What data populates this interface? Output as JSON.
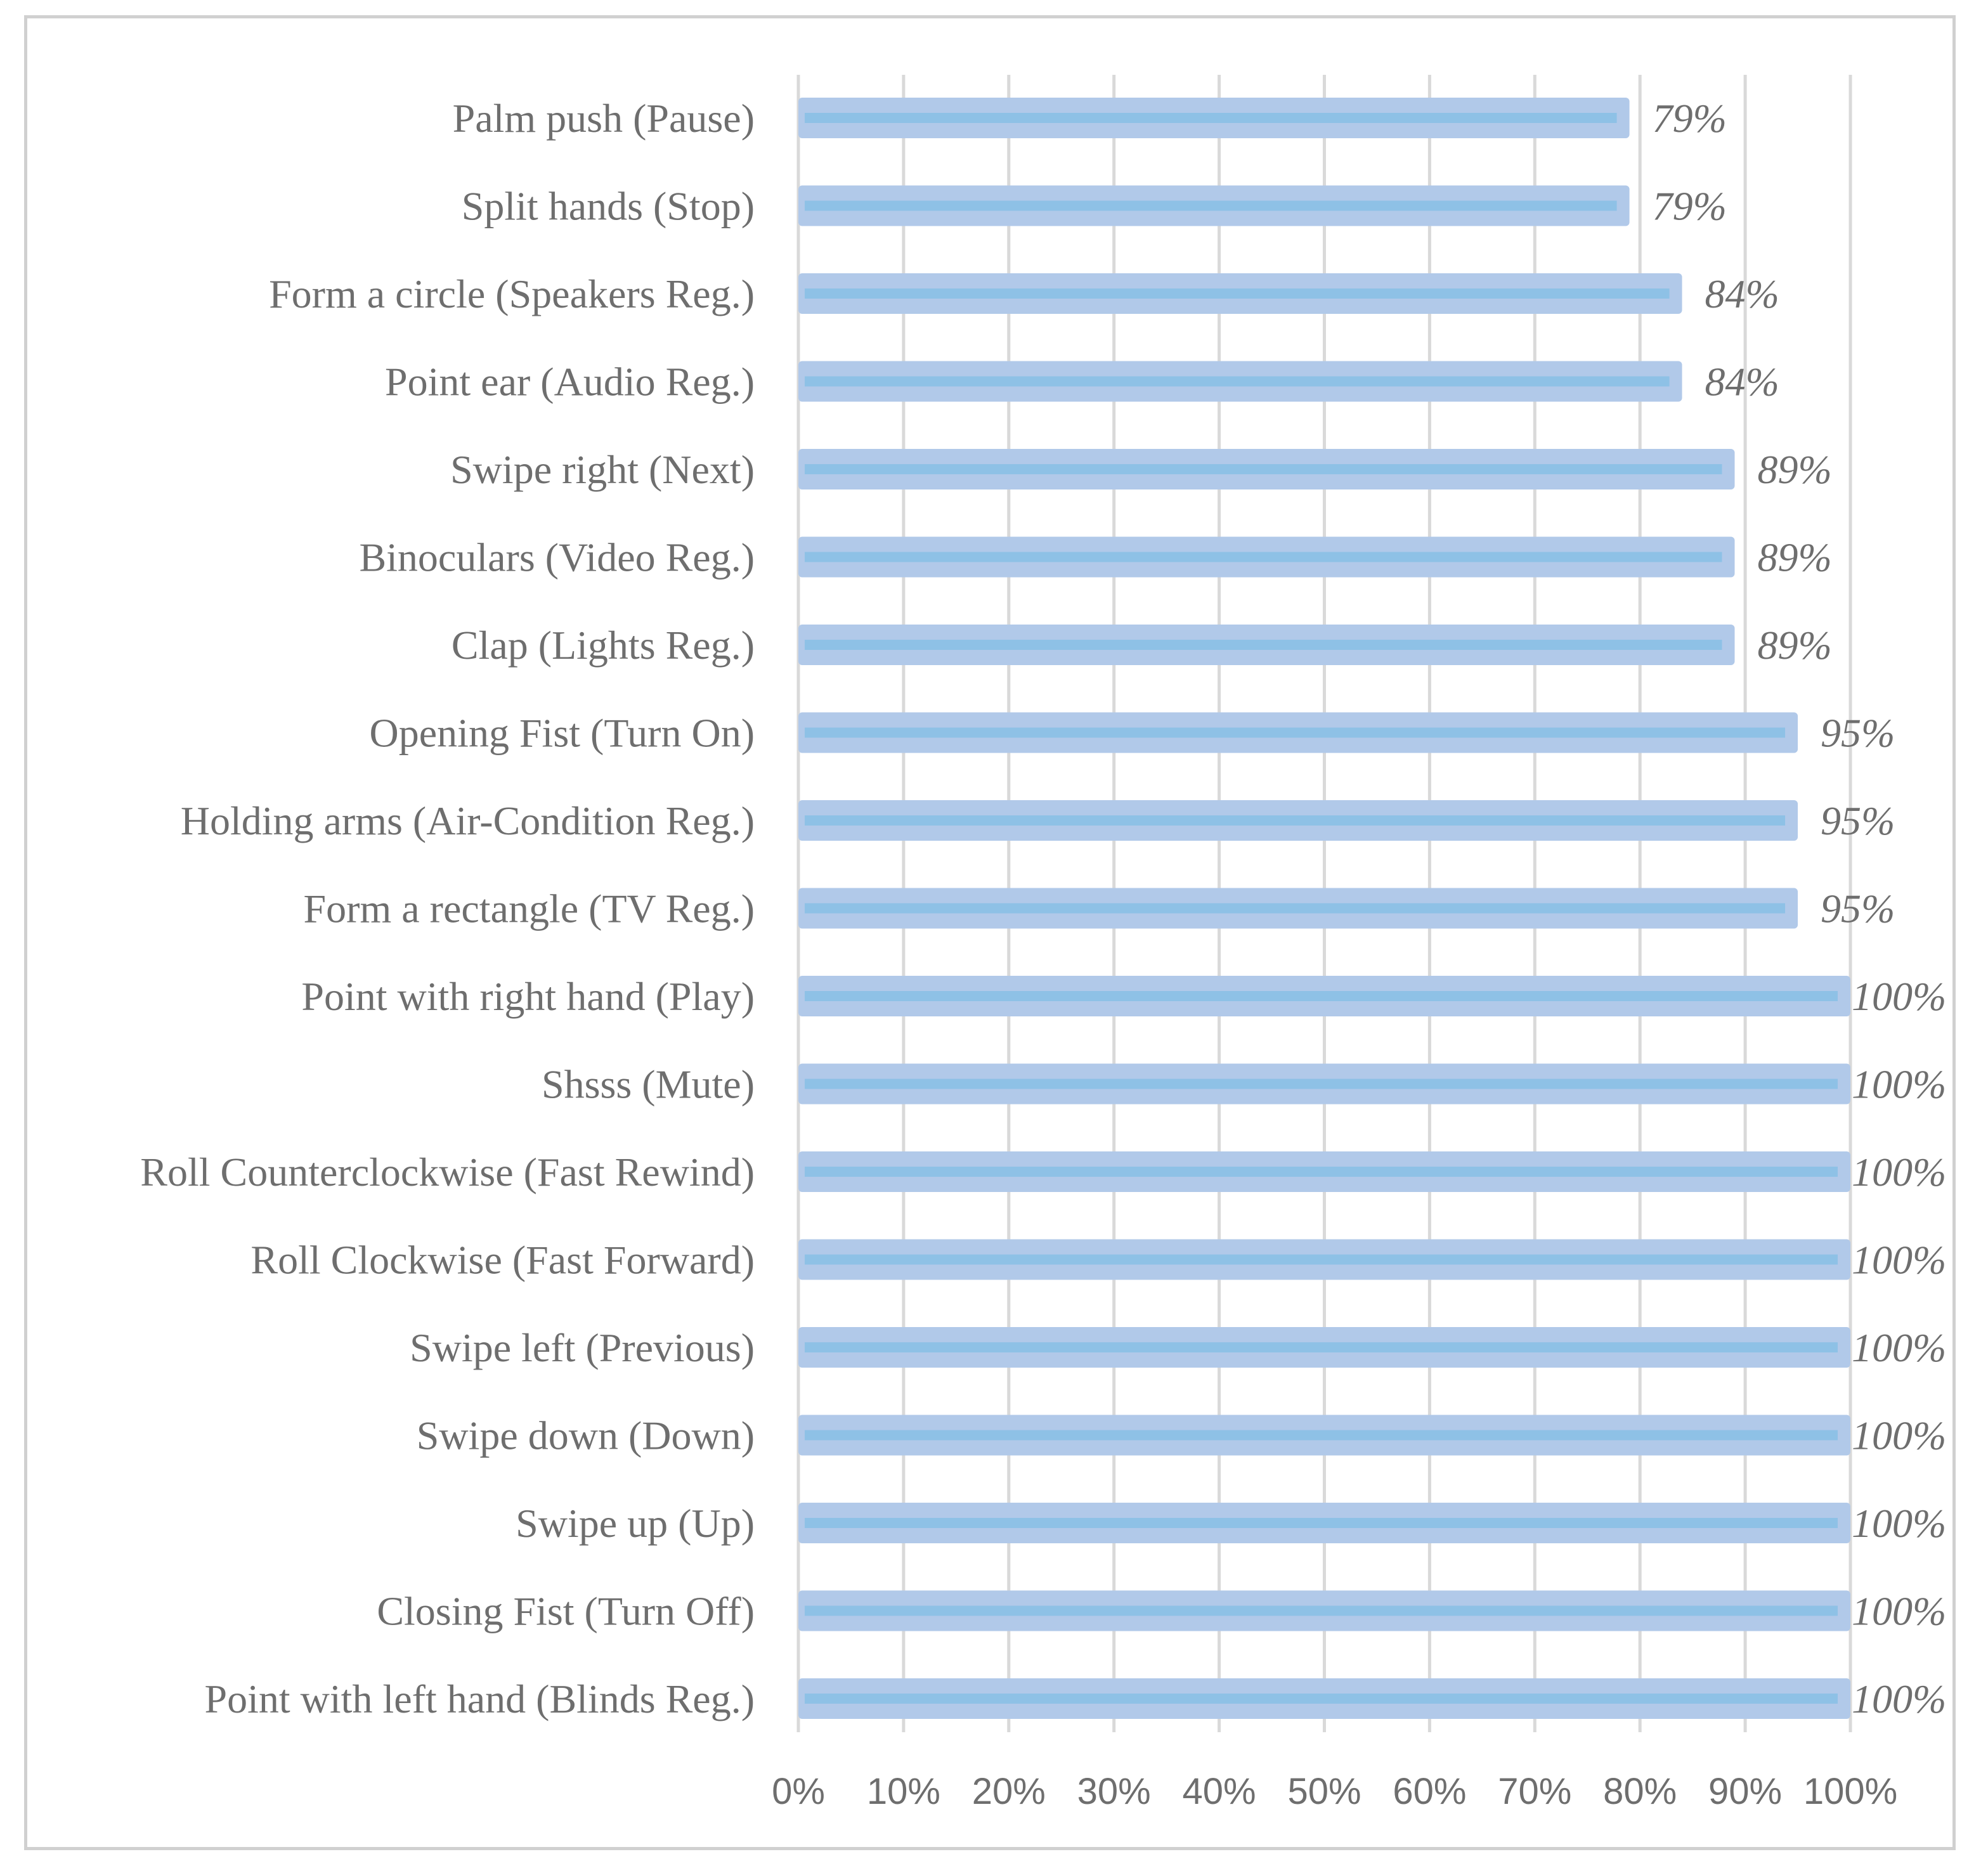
{
  "chart_data": {
    "type": "bar",
    "orientation": "horizontal",
    "title": "",
    "xlabel": "",
    "ylabel": "",
    "xlim": [
      0,
      100
    ],
    "grid": true,
    "categories": [
      "Palm push (Pause)",
      "Split hands (Stop)",
      "Form a circle (Speakers Reg.)",
      "Point ear (Audio Reg.)",
      "Swipe right (Next)",
      "Binoculars (Video Reg.)",
      "Clap (Lights Reg.)",
      "Opening Fist (Turn On)",
      "Holding arms (Air-Condition Reg.)",
      "Form a rectangle (TV Reg.)",
      "Point with right hand (Play)",
      "Shsss (Mute)",
      "Roll Counterclockwise (Fast Rewind)",
      "Roll Clockwise (Fast Forward)",
      "Swipe left (Previous)",
      "Swipe down (Down)",
      "Swipe up (Up)",
      "Closing Fist (Turn Off)",
      "Point with left hand (Blinds Reg.)"
    ],
    "values": [
      79,
      79,
      84,
      84,
      89,
      89,
      89,
      95,
      95,
      95,
      100,
      100,
      100,
      100,
      100,
      100,
      100,
      100,
      100
    ],
    "data_labels": [
      "79%",
      "79%",
      "84%",
      "84%",
      "89%",
      "89%",
      "89%",
      "95%",
      "95%",
      "95%",
      "100%",
      "100%",
      "100%",
      "100%",
      "100%",
      "100%",
      "100%",
      "100%",
      "100%"
    ],
    "x_ticks": [
      "0%",
      "10%",
      "20%",
      "30%",
      "40%",
      "50%",
      "60%",
      "70%",
      "80%",
      "90%",
      "100%"
    ],
    "colors": {
      "bar_outer": "#b1c9e9",
      "bar_inner": "#8ec1e6",
      "grid": "#d9d9d9",
      "text": "#6e6e6e"
    }
  }
}
